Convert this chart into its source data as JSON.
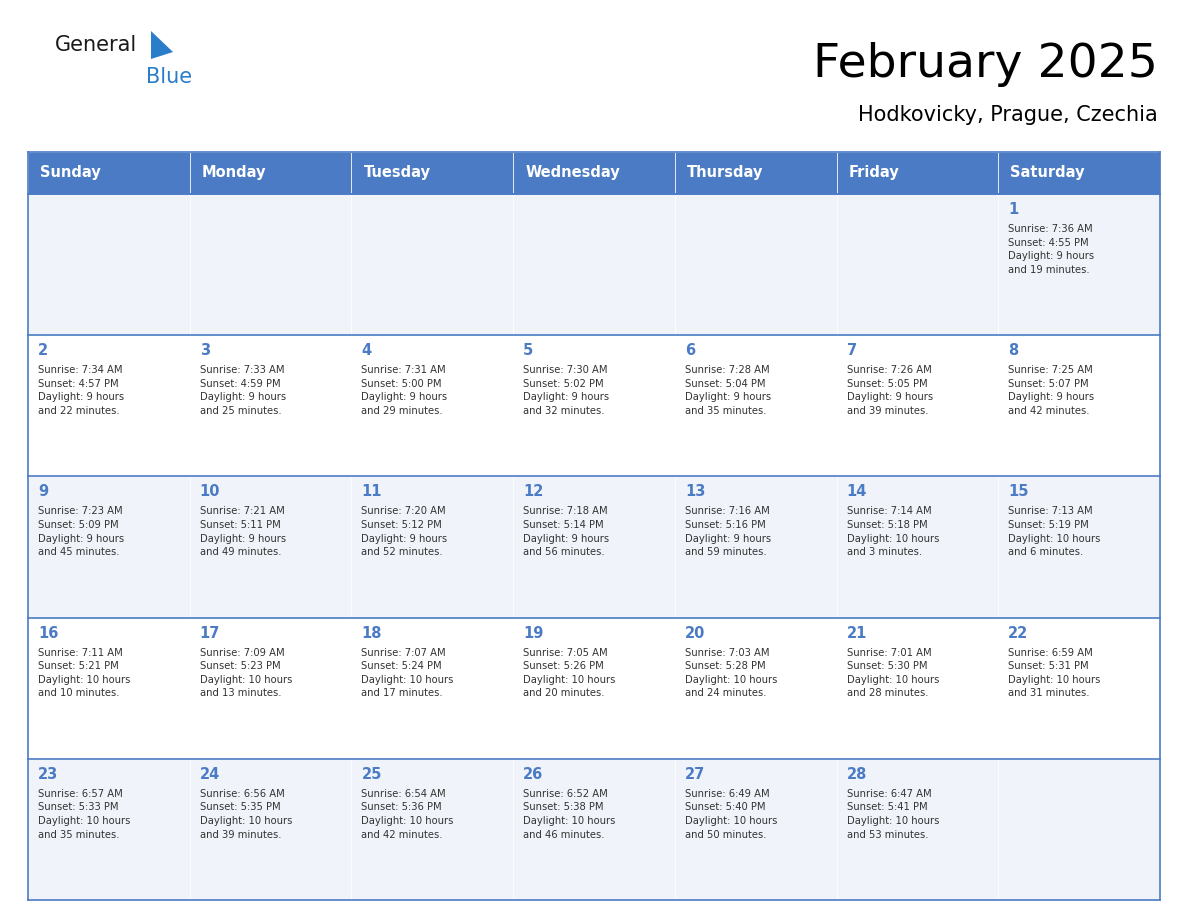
{
  "title": "February 2025",
  "subtitle": "Hodkovicky, Prague, Czechia",
  "header_color": "#4A7BC4",
  "header_text_color": "#FFFFFF",
  "cell_bg_light": "#F0F4FA",
  "cell_bg_white": "#FFFFFF",
  "border_color": "#4A7BC4",
  "text_color": "#333333",
  "day_num_color": "#4A7BC4",
  "days_of_week": [
    "Sunday",
    "Monday",
    "Tuesday",
    "Wednesday",
    "Thursday",
    "Friday",
    "Saturday"
  ],
  "weeks": [
    [
      {
        "day": "",
        "info": ""
      },
      {
        "day": "",
        "info": ""
      },
      {
        "day": "",
        "info": ""
      },
      {
        "day": "",
        "info": ""
      },
      {
        "day": "",
        "info": ""
      },
      {
        "day": "",
        "info": ""
      },
      {
        "day": "1",
        "info": "Sunrise: 7:36 AM\nSunset: 4:55 PM\nDaylight: 9 hours\nand 19 minutes."
      }
    ],
    [
      {
        "day": "2",
        "info": "Sunrise: 7:34 AM\nSunset: 4:57 PM\nDaylight: 9 hours\nand 22 minutes."
      },
      {
        "day": "3",
        "info": "Sunrise: 7:33 AM\nSunset: 4:59 PM\nDaylight: 9 hours\nand 25 minutes."
      },
      {
        "day": "4",
        "info": "Sunrise: 7:31 AM\nSunset: 5:00 PM\nDaylight: 9 hours\nand 29 minutes."
      },
      {
        "day": "5",
        "info": "Sunrise: 7:30 AM\nSunset: 5:02 PM\nDaylight: 9 hours\nand 32 minutes."
      },
      {
        "day": "6",
        "info": "Sunrise: 7:28 AM\nSunset: 5:04 PM\nDaylight: 9 hours\nand 35 minutes."
      },
      {
        "day": "7",
        "info": "Sunrise: 7:26 AM\nSunset: 5:05 PM\nDaylight: 9 hours\nand 39 minutes."
      },
      {
        "day": "8",
        "info": "Sunrise: 7:25 AM\nSunset: 5:07 PM\nDaylight: 9 hours\nand 42 minutes."
      }
    ],
    [
      {
        "day": "9",
        "info": "Sunrise: 7:23 AM\nSunset: 5:09 PM\nDaylight: 9 hours\nand 45 minutes."
      },
      {
        "day": "10",
        "info": "Sunrise: 7:21 AM\nSunset: 5:11 PM\nDaylight: 9 hours\nand 49 minutes."
      },
      {
        "day": "11",
        "info": "Sunrise: 7:20 AM\nSunset: 5:12 PM\nDaylight: 9 hours\nand 52 minutes."
      },
      {
        "day": "12",
        "info": "Sunrise: 7:18 AM\nSunset: 5:14 PM\nDaylight: 9 hours\nand 56 minutes."
      },
      {
        "day": "13",
        "info": "Sunrise: 7:16 AM\nSunset: 5:16 PM\nDaylight: 9 hours\nand 59 minutes."
      },
      {
        "day": "14",
        "info": "Sunrise: 7:14 AM\nSunset: 5:18 PM\nDaylight: 10 hours\nand 3 minutes."
      },
      {
        "day": "15",
        "info": "Sunrise: 7:13 AM\nSunset: 5:19 PM\nDaylight: 10 hours\nand 6 minutes."
      }
    ],
    [
      {
        "day": "16",
        "info": "Sunrise: 7:11 AM\nSunset: 5:21 PM\nDaylight: 10 hours\nand 10 minutes."
      },
      {
        "day": "17",
        "info": "Sunrise: 7:09 AM\nSunset: 5:23 PM\nDaylight: 10 hours\nand 13 minutes."
      },
      {
        "day": "18",
        "info": "Sunrise: 7:07 AM\nSunset: 5:24 PM\nDaylight: 10 hours\nand 17 minutes."
      },
      {
        "day": "19",
        "info": "Sunrise: 7:05 AM\nSunset: 5:26 PM\nDaylight: 10 hours\nand 20 minutes."
      },
      {
        "day": "20",
        "info": "Sunrise: 7:03 AM\nSunset: 5:28 PM\nDaylight: 10 hours\nand 24 minutes."
      },
      {
        "day": "21",
        "info": "Sunrise: 7:01 AM\nSunset: 5:30 PM\nDaylight: 10 hours\nand 28 minutes."
      },
      {
        "day": "22",
        "info": "Sunrise: 6:59 AM\nSunset: 5:31 PM\nDaylight: 10 hours\nand 31 minutes."
      }
    ],
    [
      {
        "day": "23",
        "info": "Sunrise: 6:57 AM\nSunset: 5:33 PM\nDaylight: 10 hours\nand 35 minutes."
      },
      {
        "day": "24",
        "info": "Sunrise: 6:56 AM\nSunset: 5:35 PM\nDaylight: 10 hours\nand 39 minutes."
      },
      {
        "day": "25",
        "info": "Sunrise: 6:54 AM\nSunset: 5:36 PM\nDaylight: 10 hours\nand 42 minutes."
      },
      {
        "day": "26",
        "info": "Sunrise: 6:52 AM\nSunset: 5:38 PM\nDaylight: 10 hours\nand 46 minutes."
      },
      {
        "day": "27",
        "info": "Sunrise: 6:49 AM\nSunset: 5:40 PM\nDaylight: 10 hours\nand 50 minutes."
      },
      {
        "day": "28",
        "info": "Sunrise: 6:47 AM\nSunset: 5:41 PM\nDaylight: 10 hours\nand 53 minutes."
      },
      {
        "day": "",
        "info": ""
      }
    ]
  ],
  "logo_general_color": "#1a1a1a",
  "logo_blue_color": "#2a7dc9",
  "logo_triangle_color": "#2a7dc9",
  "fig_width": 11.88,
  "fig_height": 9.18,
  "dpi": 100
}
